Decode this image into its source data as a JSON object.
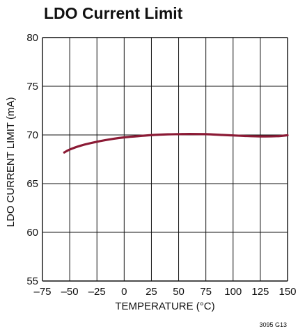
{
  "chart_data": {
    "type": "line",
    "title": "LDO Current Limit",
    "xlabel": "TEMPERATURE (°C)",
    "ylabel": "LDO CURRENT LIMIT (mA)",
    "xlim": [
      -75,
      150
    ],
    "ylim": [
      55,
      80
    ],
    "x_ticks": [
      "–75",
      "–50",
      "–25",
      "0",
      "25",
      "50",
      "75",
      "100",
      "125",
      "150"
    ],
    "y_ticks": [
      "55",
      "60",
      "65",
      "70",
      "75",
      "80"
    ],
    "grid": true,
    "series": [
      {
        "x": [
          -55,
          -50,
          -40,
          -25,
          -10,
          0,
          10,
          25,
          40,
          50,
          60,
          75,
          90,
          100,
          110,
          125,
          140,
          150
        ],
        "y": [
          68.2,
          68.5,
          68.9,
          69.3,
          69.6,
          69.75,
          69.85,
          69.98,
          70.06,
          70.08,
          70.1,
          70.08,
          70.0,
          69.95,
          69.9,
          69.85,
          69.87,
          69.97
        ]
      }
    ],
    "colors": {
      "line": "#8b1a35",
      "grid": "#111111"
    },
    "figure_id": "3095 G13"
  }
}
